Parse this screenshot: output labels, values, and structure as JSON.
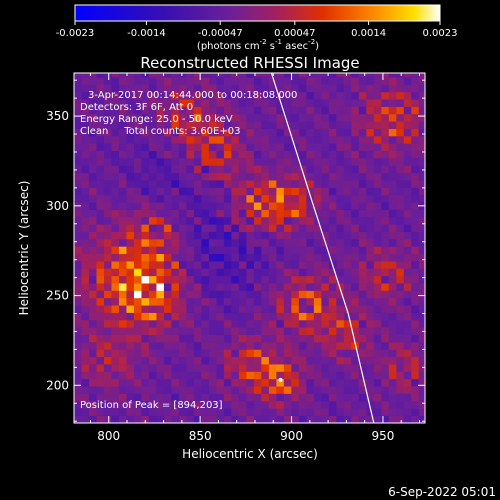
{
  "chart_data": {
    "type": "heatmap",
    "title": "Reconstructed RHESSI Image",
    "xlabel": "Heliocentric X (arcsec)",
    "ylabel": "Heliocentric Y (arcsec)",
    "xlim": [
      781,
      973
    ],
    "ylim": [
      179,
      374
    ],
    "x_ticks": [
      800,
      850,
      900,
      950
    ],
    "y_ticks": [
      200,
      250,
      300,
      350
    ],
    "colorbar": {
      "ticks": [
        "-0.0023",
        "-0.0014",
        "-0.00047",
        "0.00047",
        "0.0014",
        "0.0023"
      ],
      "vmin": -0.0023,
      "vmax": 0.0023,
      "unit_label_parts": [
        "(photons cm",
        "-2",
        " s",
        "-1",
        " asec",
        "-2",
        ")"
      ]
    },
    "annotations": [
      "3-Apr-2017 00:14:44.000 to 00:18:08.000",
      "Detectors: 3F 6F, Att 0",
      "Energy Range: 25.0 - 50.0 keV",
      "Clean     Total counts: 3.60E+03",
      "Position of Peak = [894,203]"
    ],
    "peak": [
      894,
      203
    ],
    "limb_curve": [
      [
        889,
        374
      ],
      [
        912,
        300
      ],
      [
        931,
        240
      ],
      [
        945,
        179
      ]
    ],
    "blobs": [
      {
        "x": 808,
        "y": 262,
        "amp": 0.0016,
        "r": 18
      },
      {
        "x": 822,
        "y": 252,
        "amp": 0.0021,
        "r": 14
      },
      {
        "x": 826,
        "y": 285,
        "amp": 0.0013,
        "r": 12
      },
      {
        "x": 882,
        "y": 300,
        "amp": 0.002,
        "r": 11
      },
      {
        "x": 900,
        "y": 302,
        "amp": 0.0017,
        "r": 10
      },
      {
        "x": 858,
        "y": 330,
        "amp": 0.0016,
        "r": 12
      },
      {
        "x": 842,
        "y": 350,
        "amp": 0.0014,
        "r": 11
      },
      {
        "x": 908,
        "y": 245,
        "amp": 0.0019,
        "r": 12
      },
      {
        "x": 930,
        "y": 228,
        "amp": 0.0015,
        "r": 9
      },
      {
        "x": 894,
        "y": 203,
        "amp": 0.0023,
        "r": 8
      },
      {
        "x": 878,
        "y": 212,
        "amp": 0.0017,
        "r": 10
      },
      {
        "x": 955,
        "y": 348,
        "amp": 0.0018,
        "r": 12
      },
      {
        "x": 952,
        "y": 262,
        "amp": 0.0014,
        "r": 10
      },
      {
        "x": 962,
        "y": 210,
        "amp": 0.0013,
        "r": 9
      },
      {
        "x": 800,
        "y": 214,
        "amp": 0.0012,
        "r": 11
      },
      {
        "x": 860,
        "y": 278,
        "amp": -0.0009,
        "r": 22
      },
      {
        "x": 832,
        "y": 318,
        "amp": -0.0006,
        "r": 16
      }
    ]
  },
  "footer": {
    "timestamp": "6-Sep-2022 05:01"
  }
}
